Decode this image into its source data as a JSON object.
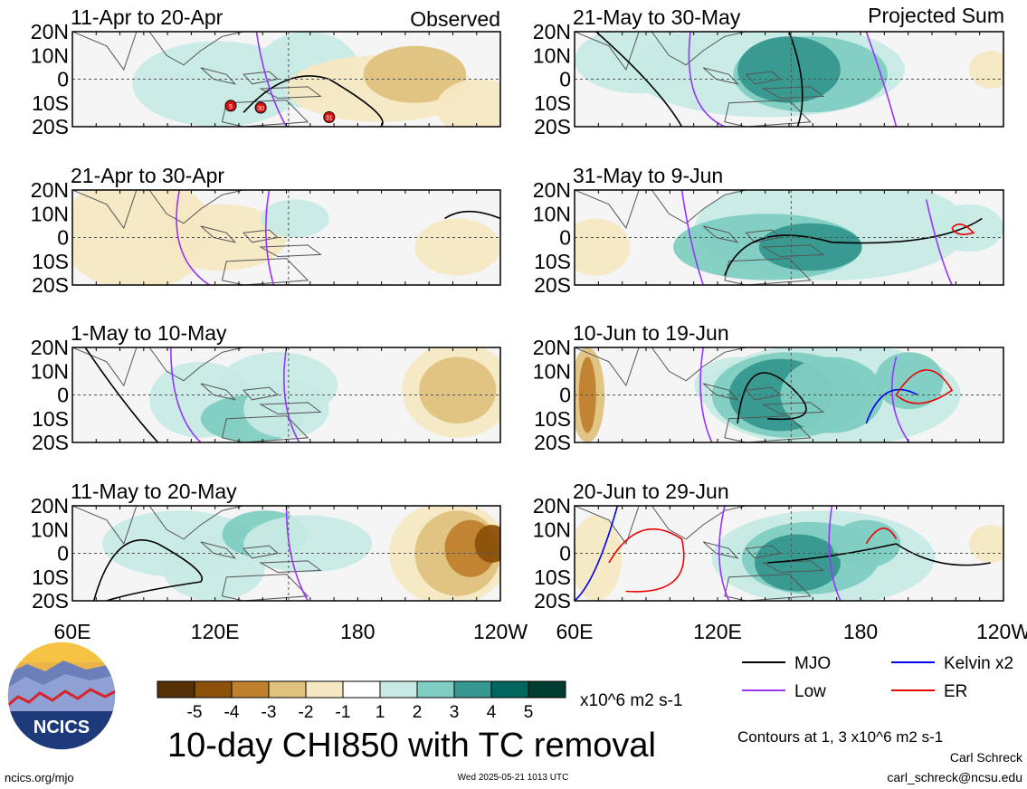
{
  "figure": {
    "title": "10-day CHI850 with TC removal",
    "units": "x10^6 m2 s-1",
    "footer_left": "ncics.org/mjo",
    "footer_center": "Wed 2025-05-21 1013 UTC",
    "author": "Carl Schreck",
    "email": "carl_schreck@ncsu.edu",
    "contour_note": "Contours at 1, 3 x10^6 m2 s-1",
    "logo_text": "NCICS",
    "colors": {
      "negative": [
        "#543005",
        "#8c510a",
        "#bf812d",
        "#dfc27d",
        "#f6e8c3"
      ],
      "neutral": "#f5f5f5",
      "positive": [
        "#c7eae5",
        "#80cdc1",
        "#35978f",
        "#01665e",
        "#003c30"
      ],
      "mjo": "#000000",
      "low": "#9933ff",
      "kelvin": "#0000ee",
      "er": "#ee0000"
    }
  },
  "columns": {
    "left_label": "Observed",
    "right_label": "Projected Sum"
  },
  "colorbar": {
    "labels": [
      "-5",
      "-4",
      "-3",
      "-2",
      "-1",
      "1",
      "2",
      "3",
      "4",
      "5"
    ]
  },
  "legend": [
    {
      "name": "MJO",
      "color": "#000000"
    },
    {
      "name": "Kelvin x2",
      "color": "#0000ee"
    },
    {
      "name": "Low",
      "color": "#9933ff"
    },
    {
      "name": "ER",
      "color": "#ee0000"
    }
  ],
  "chart_data": {
    "type": "heatmap",
    "variable": "10-day CHI850 anomaly with TC removal",
    "units": "x10^6 m2 s-1",
    "color_levels": [
      -5,
      -4,
      -3,
      -2,
      -1,
      1,
      2,
      3,
      4,
      5
    ],
    "contour_levels": [
      1,
      3
    ],
    "lon_ticks": [
      "60E",
      "120E",
      "180",
      "120W"
    ],
    "lat_ticks": [
      "20N",
      "10N",
      "0",
      "10S",
      "20S"
    ],
    "lon_range": [
      60,
      240
    ],
    "lat_range": [
      -20,
      20
    ],
    "panels": [
      {
        "period": "11-Apr to 20-Apr",
        "type": "Observed",
        "tc_markers": [
          "5",
          "30",
          "31"
        ]
      },
      {
        "period": "21-Apr to 30-Apr",
        "type": "Observed"
      },
      {
        "period": "1-May to 10-May",
        "type": "Observed"
      },
      {
        "period": "11-May to 20-May",
        "type": "Observed"
      },
      {
        "period": "21-May to 30-May",
        "type": "Projected Sum"
      },
      {
        "period": "31-May to 9-Jun",
        "type": "Projected Sum"
      },
      {
        "period": "10-Jun to 19-Jun",
        "type": "Projected Sum"
      },
      {
        "period": "20-Jun to 29-Jun",
        "type": "Projected Sum"
      }
    ]
  }
}
